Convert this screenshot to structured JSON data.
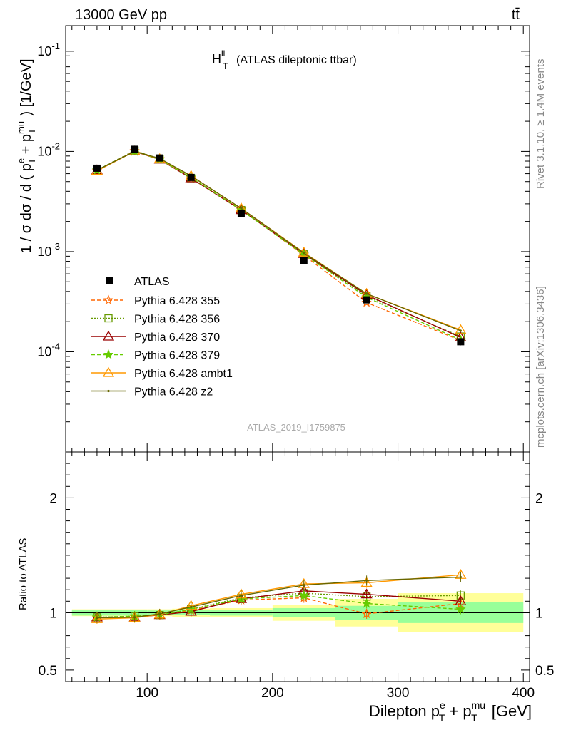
{
  "header": {
    "left": "13000 GeV pp",
    "right": "tt̄"
  },
  "side": {
    "rivet": "Rivet 3.1.10, ≥ 1.4M events",
    "mcplots": "mcplots.cern.ch [arXiv:1306.3436]"
  },
  "colors": {
    "atlas": "#000000",
    "p355": "#ff6600",
    "p356": "#669900",
    "p370": "#990000",
    "p379": "#66cc00",
    "ambt1": "#ff9900",
    "z2": "#666600",
    "band_inner": "#99ff99",
    "band_outer": "#ffff99"
  },
  "chart_data": [
    {
      "type": "line",
      "panel": "main",
      "title_main": "H",
      "title_sup": "ll",
      "title_sub": "T",
      "title_rest": "(ATLAS dileptonic ttbar)",
      "watermark": "ATLAS_2019_I1759875",
      "ylabel": "1 / σ  dσ / d ( p^e_T + p^mu_T ) [1/GeV]",
      "yscale": "log",
      "ylim": [
        1e-05,
        0.18
      ],
      "xlim": [
        35,
        405
      ],
      "y_ticks": [
        "10^-4",
        "10^-3",
        "10^-2",
        "10^-1"
      ],
      "legend_position": "left",
      "x": [
        60,
        90,
        110,
        135,
        175,
        225,
        275,
        350
      ],
      "series": [
        {
          "name": "ATLAS",
          "values": [
            0.0068,
            0.0105,
            0.0086,
            0.0055,
            0.0024,
            0.00082,
            0.00033,
            0.000126
          ],
          "errors": [
            0.0002,
            0.0003,
            0.0002,
            0.00015,
            8e-05,
            3e-05,
            2e-05,
            1e-05
          ]
        },
        {
          "name": "Pythia 6.428 355",
          "values": [
            0.0064,
            0.0101,
            0.0084,
            0.0054,
            0.00265,
            0.00092,
            0.00031,
            0.00013
          ]
        },
        {
          "name": "Pythia 6.428 356",
          "values": [
            0.0065,
            0.0102,
            0.0084,
            0.0054,
            0.0026,
            0.00094,
            0.00036,
            0.000142
          ]
        },
        {
          "name": "Pythia 6.428 370",
          "values": [
            0.0065,
            0.01,
            0.0083,
            0.0054,
            0.0026,
            0.00095,
            0.00037,
            0.000139
          ]
        },
        {
          "name": "Pythia 6.428 379",
          "values": [
            0.0065,
            0.01,
            0.0083,
            0.0055,
            0.0026,
            0.00094,
            0.00035,
            0.000131
          ]
        },
        {
          "name": "Pythia 6.428 ambt1",
          "values": [
            0.0064,
            0.01,
            0.0084,
            0.0057,
            0.0027,
            0.00098,
            0.00038,
            0.000165
          ]
        },
        {
          "name": "Pythia 6.428 z2",
          "values": [
            0.0065,
            0.01,
            0.0085,
            0.0057,
            0.0027,
            0.00097,
            0.00038,
            0.000162
          ]
        }
      ]
    },
    {
      "type": "line",
      "panel": "ratio",
      "ylabel": "Ratio to ATLAS",
      "ylim": [
        0.4,
        2.4
      ],
      "y_ticks": [
        "0.5",
        "1",
        "2"
      ],
      "xlabel": "Dilepton p^e_T + p^mu_T [GeV]",
      "x_ticks": [
        "100",
        "200",
        "300",
        "400"
      ],
      "bins": [
        [
          40,
          80
        ],
        [
          80,
          100
        ],
        [
          100,
          120
        ],
        [
          120,
          150
        ],
        [
          150,
          200
        ],
        [
          200,
          250
        ],
        [
          250,
          300
        ],
        [
          300,
          400
        ]
      ],
      "band_inner": [
        0.025,
        0.025,
        0.02,
        0.022,
        0.025,
        0.04,
        0.06,
        0.09
      ],
      "band_outer": [
        0.03,
        0.03,
        0.03,
        0.035,
        0.04,
        0.07,
        0.12,
        0.17
      ],
      "x": [
        60,
        90,
        110,
        135,
        175,
        225,
        275,
        350
      ],
      "series": [
        {
          "name": "Pythia 6.428 355",
          "values": [
            0.955,
            0.965,
            0.98,
            1.02,
            1.11,
            1.13,
            0.99,
            1.08
          ]
        },
        {
          "name": "Pythia 6.428 356",
          "values": [
            0.96,
            0.97,
            0.98,
            1.03,
            1.13,
            1.17,
            1.14,
            1.15
          ]
        },
        {
          "name": "Pythia 6.428 370",
          "values": [
            0.96,
            0.96,
            0.98,
            1.01,
            1.12,
            1.19,
            1.16,
            1.1
          ]
        },
        {
          "name": "Pythia 6.428 379",
          "values": [
            0.96,
            0.97,
            0.98,
            1.03,
            1.12,
            1.15,
            1.08,
            1.03
          ]
        },
        {
          "name": "Pythia 6.428 ambt1",
          "values": [
            0.945,
            0.955,
            0.985,
            1.06,
            1.16,
            1.25,
            1.26,
            1.33
          ]
        },
        {
          "name": "Pythia 6.428 z2",
          "values": [
            0.955,
            0.96,
            0.99,
            1.05,
            1.15,
            1.24,
            1.28,
            1.31
          ]
        }
      ]
    }
  ]
}
